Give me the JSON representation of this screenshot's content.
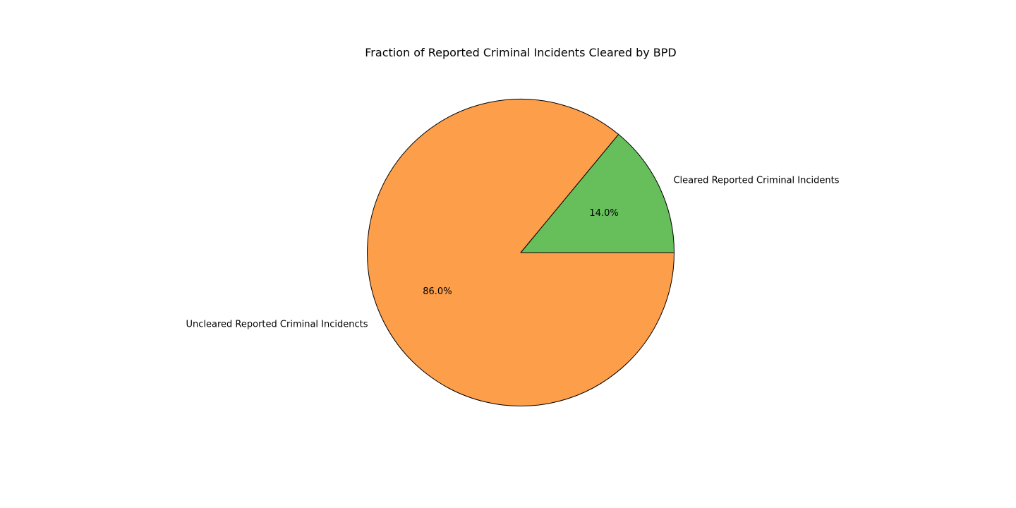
{
  "chart_data": {
    "type": "pie",
    "title": "Fraction of Reported Criminal Incidents Cleared by BPD",
    "slices": [
      {
        "label": "Cleared Reported Criminal Incidents",
        "value": 14.0,
        "pct_label": "14.0%",
        "color": "#66bf5b"
      },
      {
        "label": "Uncleared Reported Criminal Incidencts",
        "value": 86.0,
        "pct_label": "86.0%",
        "color": "#fd9e4a"
      }
    ],
    "start_angle_deg": 0,
    "direction": "counterclockwise"
  }
}
